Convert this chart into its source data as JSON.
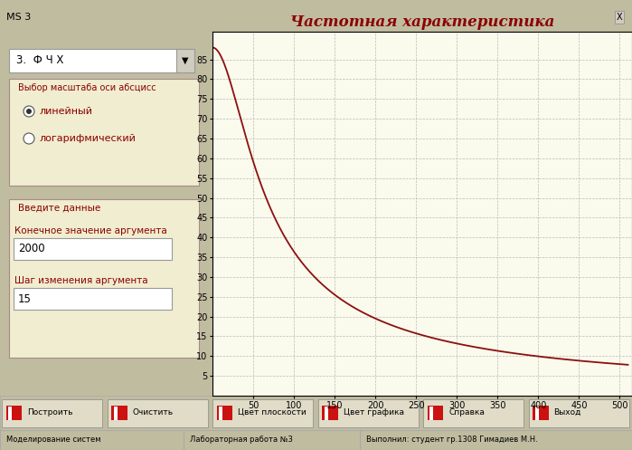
{
  "title": "Частотная характеристика",
  "title_color": "#8B0000",
  "title_fontsize": 12,
  "plot_bg_color": "#FAFAED",
  "line_color": "#8B1010",
  "line_width": 1.3,
  "formula_K": 88.0,
  "formula_T": 0.022,
  "xlim": [
    0,
    515
  ],
  "ylim": [
    0,
    92
  ],
  "xticks": [
    50,
    100,
    150,
    200,
    250,
    300,
    350,
    400,
    450,
    500
  ],
  "yticks": [
    5,
    10,
    15,
    20,
    25,
    30,
    35,
    40,
    45,
    50,
    55,
    60,
    65,
    70,
    75,
    80,
    85
  ],
  "grid_color": "#BBBBBB",
  "grid_linestyle": "--",
  "grid_linewidth": 0.5,
  "titlebar_color": "#A0A888",
  "left_panel_color": "#F0EDD0",
  "btn_bar_color": "#E8E4CC",
  "status_bar_color": "#F0EDD8",
  "outer_border_color": "#C0BCA0",
  "figure_width": 6.99,
  "figure_height": 4.97,
  "dpi": 100,
  "btn_labels": [
    "Построить",
    "Очистить",
    "Цвет плоскости",
    "Цвет графика",
    "Справка",
    "Выход"
  ],
  "status_texts": [
    "Моделирование систем",
    "Лабораторная работа №3",
    "Выполнил: студент гр.1308 Гимадиев М.Н."
  ],
  "label_color": "#8B0000",
  "text_color": "#8B0000",
  "input_text_color": "#000000",
  "dropdown_text": "3.  Ф Ч Х",
  "radio1": "линейный",
  "radio2": "логарифмический",
  "scale_label": "Выбор масштаба оси абсцисс",
  "data_label": "Введите данные",
  "arg_end_label": "Конечное значение аргумента",
  "arg_step_label": "Шаг изменения аргумента",
  "arg_end_val": "2000",
  "arg_step_val": "15",
  "titlebar_text": "MS 3",
  "close_btn": "X"
}
